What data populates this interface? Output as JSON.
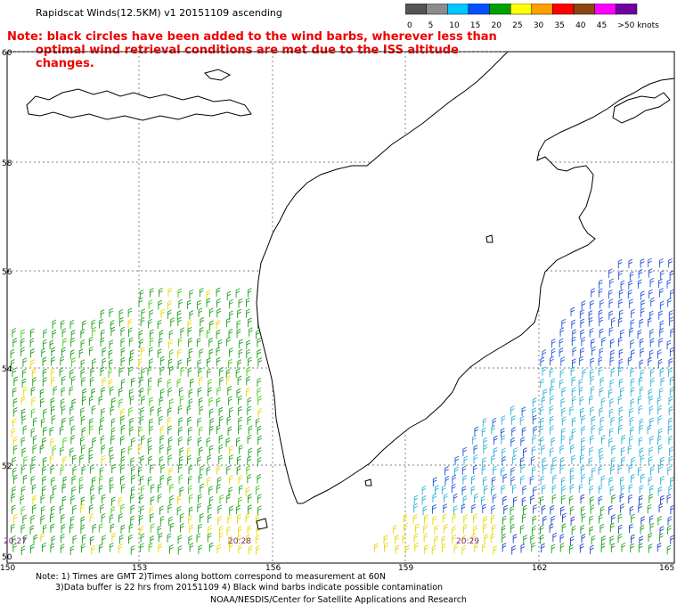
{
  "title": "Rapidscat Winds(12.5KM) v1 20151109 ascending",
  "note_line1": "Note: black circles have been added to the wind barbs, wherever less than",
  "note_line2": "optimal wind retrieval conditions are met due to the ISS altitude changes.",
  "legend": {
    "labels": [
      "0",
      "5",
      "10",
      "15",
      "20",
      "25",
      "30",
      "35",
      "40",
      "45",
      ">50 knots"
    ],
    "colors": [
      "#555555",
      "#8c8c8c",
      "#00c8ff",
      "#0050ff",
      "#00a000",
      "#ffff00",
      "#ffa000",
      "#ff0000",
      "#8b4513",
      "#ff00ff",
      "#7000a0"
    ]
  },
  "lat_labels": [
    "60",
    "58",
    "56",
    "54",
    "52",
    "50"
  ],
  "lon_labels": [
    "150",
    "153",
    "156",
    "159",
    "162",
    "165"
  ],
  "time_labels": [
    "20:27",
    "20:28",
    "20:29"
  ],
  "footnote_line1": "Note: 1) Times are GMT 2)Times along bottom correspond to measurement at 60N",
  "footnote_line2": "3)Data buffer is 22 hrs from 20151109 4) Black wind barbs indicate possible contamination",
  "credit": "NOAA/NESDIS/Center for Satellite Applications and Research"
}
